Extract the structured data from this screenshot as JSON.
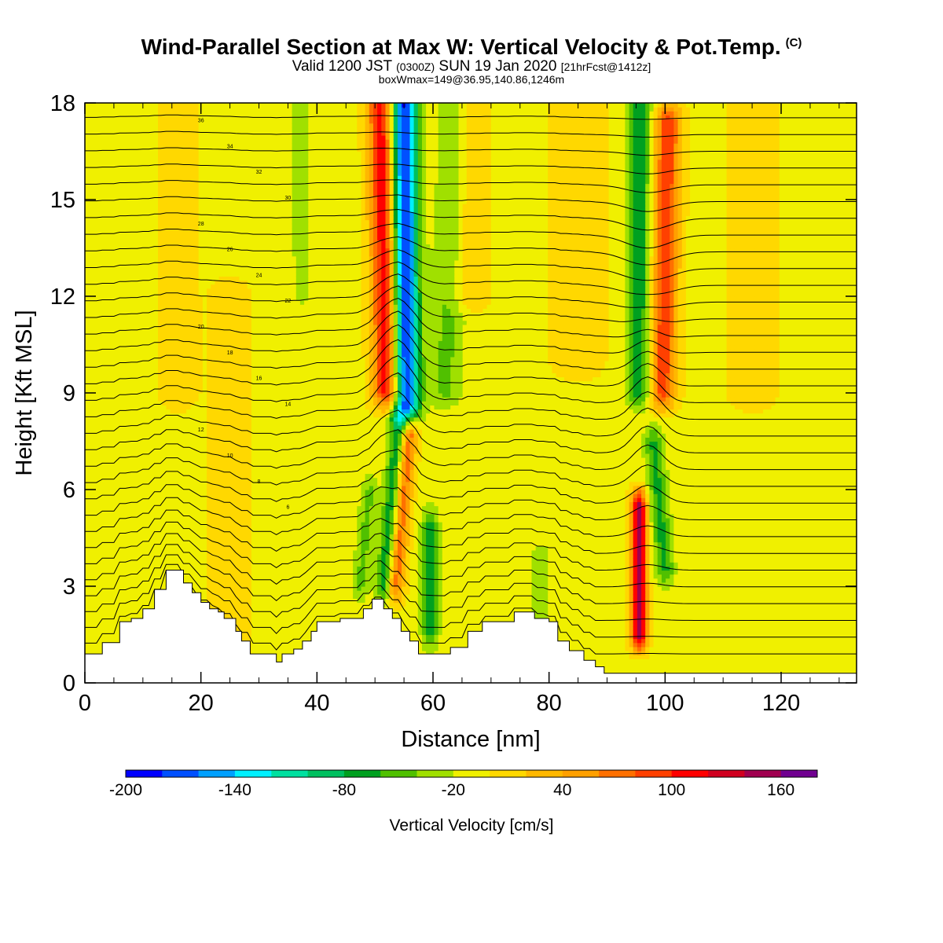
{
  "title": {
    "main": "Wind-Parallel Section at Max W: Vertical Velocity & Pot.Temp.",
    "copyright": "(C)",
    "valid_prefix": "Valid 1200 JST",
    "valid_utc": "(0300Z)",
    "valid_date": "SUN 19 Jan 2020",
    "fcst": "[21hrFcst@1412z]",
    "boxmax": "boxWmax=149@36.95,140.86,1246m"
  },
  "chart_data": {
    "type": "heatmap",
    "xlabel": "Distance [nm]",
    "ylabel": "Height [Kft MSL]",
    "xlim": [
      0,
      133
    ],
    "ylim": [
      0,
      18
    ],
    "xticks": [
      0,
      20,
      40,
      60,
      80,
      100,
      120
    ],
    "yticks": [
      0,
      3,
      6,
      9,
      12,
      15,
      18
    ],
    "colorbar": {
      "label": "Vertical Velocity [cm/s]",
      "range": [
        -200,
        180
      ],
      "tick_labels": [
        -200,
        -140,
        -80,
        -20,
        40,
        100,
        160
      ],
      "colors": [
        "#0000ff",
        "#0050ff",
        "#00a0ff",
        "#00f0ff",
        "#00e0a0",
        "#00c060",
        "#00a020",
        "#50c000",
        "#a0e000",
        "#f0f000",
        "#ffd800",
        "#ffb800",
        "#ffa000",
        "#ff7000",
        "#ff4000",
        "#ff0000",
        "#d00020",
        "#a00050",
        "#700090"
      ]
    },
    "background_value": -5,
    "velocity_features": [
      {
        "x": 52,
        "x_top": 51,
        "z0": 9,
        "z1": 18,
        "width": 2.2,
        "w": 120
      },
      {
        "x": 55.5,
        "x_top": 55,
        "z0": 8.5,
        "z1": 18,
        "width": 2.2,
        "w": -180
      },
      {
        "x": 51.5,
        "x_top": 54,
        "z0": 3,
        "z1": 8,
        "width": 1.5,
        "w": -70
      },
      {
        "x": 53.5,
        "x_top": 56,
        "z0": 3,
        "z1": 8,
        "width": 1.4,
        "w": 80
      },
      {
        "x": 62,
        "x_top": 64,
        "z0": 9,
        "z1": 18,
        "width": 3,
        "w": -40
      },
      {
        "x": 59.5,
        "x_top": 59.5,
        "z0": 1.5,
        "z1": 5,
        "width": 1.5,
        "w": -60
      },
      {
        "x": 47.5,
        "x_top": 49,
        "z0": 3,
        "z1": 6,
        "width": 1.5,
        "w": -40
      },
      {
        "x": 95.5,
        "x_top": 95.5,
        "z0": 9,
        "z1": 18,
        "width": 2.2,
        "w": -70
      },
      {
        "x": 99.5,
        "x_top": 100.5,
        "z0": 9,
        "z1": 17.5,
        "width": 2.2,
        "w": 100
      },
      {
        "x": 95.5,
        "x_top": 95.5,
        "z0": 1.5,
        "z1": 5.5,
        "width": 1.3,
        "w": 160
      },
      {
        "x": 100,
        "x_top": 98,
        "z0": 3.5,
        "z1": 7.5,
        "width": 1.7,
        "w": -60
      },
      {
        "x": 37.5,
        "x_top": 37,
        "z0": 12,
        "z1": 18,
        "width": 2.5,
        "w": -20
      },
      {
        "x": 78.5,
        "x_top": 78.5,
        "z0": 2,
        "z1": 4,
        "width": 2,
        "w": -25
      },
      {
        "x": 85,
        "x_top": 85,
        "z0": 10,
        "z1": 18,
        "width": 4,
        "w": 25
      },
      {
        "x": 66,
        "x_top": 66,
        "z0": 12,
        "z1": 18,
        "width": 3,
        "w": 30
      },
      {
        "x": 16,
        "x_top": 16,
        "z0": 9,
        "z1": 18,
        "width": 3,
        "w": 20
      },
      {
        "x": 25,
        "x_top": 25,
        "z0": 1,
        "z1": 12,
        "width": 3,
        "w": 25
      },
      {
        "x": 115,
        "x_top": 115,
        "z0": 9,
        "z1": 18,
        "width": 4,
        "w": 20
      }
    ],
    "terrain_profile_kft": [
      [
        0,
        0.9
      ],
      [
        3,
        0.9
      ],
      [
        3,
        1.25
      ],
      [
        6,
        1.25
      ],
      [
        6,
        1.9
      ],
      [
        8,
        1.9
      ],
      [
        8,
        2.0
      ],
      [
        10,
        2.0
      ],
      [
        10,
        2.3
      ],
      [
        12,
        2.3
      ],
      [
        12,
        2.9
      ],
      [
        14,
        2.9
      ],
      [
        14,
        3.5
      ],
      [
        17,
        3.5
      ],
      [
        17,
        3.1
      ],
      [
        18.5,
        3.1
      ],
      [
        18.5,
        2.8
      ],
      [
        20,
        2.8
      ],
      [
        20,
        2.5
      ],
      [
        21.5,
        2.5
      ],
      [
        21.5,
        2.3
      ],
      [
        23,
        2.3
      ],
      [
        23,
        2.2
      ],
      [
        24,
        2.2
      ],
      [
        24,
        2.0
      ],
      [
        26,
        2.0
      ],
      [
        26,
        1.6
      ],
      [
        27,
        1.6
      ],
      [
        27,
        1.3
      ],
      [
        28.5,
        1.3
      ],
      [
        28.5,
        0.9
      ],
      [
        33,
        0.9
      ],
      [
        33,
        0.65
      ],
      [
        34,
        0.65
      ],
      [
        34,
        0.9
      ],
      [
        36,
        0.9
      ],
      [
        36,
        1.05
      ],
      [
        37.5,
        1.05
      ],
      [
        37.5,
        1.3
      ],
      [
        39,
        1.3
      ],
      [
        39,
        1.6
      ],
      [
        40,
        1.6
      ],
      [
        40,
        1.9
      ],
      [
        44,
        1.9
      ],
      [
        44,
        2.0
      ],
      [
        48,
        2.0
      ],
      [
        48,
        2.3
      ],
      [
        49.5,
        2.3
      ],
      [
        49.5,
        2.6
      ],
      [
        51.5,
        2.6
      ],
      [
        51.5,
        2.3
      ],
      [
        53,
        2.3
      ],
      [
        53,
        2.0
      ],
      [
        54.5,
        2.0
      ],
      [
        54.5,
        1.6
      ],
      [
        56,
        1.6
      ],
      [
        56,
        1.3
      ],
      [
        57.5,
        1.3
      ],
      [
        57.5,
        0.9
      ],
      [
        63,
        0.9
      ],
      [
        63,
        1.1
      ],
      [
        66,
        1.1
      ],
      [
        66,
        1.6
      ],
      [
        68.5,
        1.6
      ],
      [
        68.5,
        1.9
      ],
      [
        74,
        1.9
      ],
      [
        74,
        2.2
      ],
      [
        77.5,
        2.2
      ],
      [
        77.5,
        2.0
      ],
      [
        80,
        2.0
      ],
      [
        80,
        1.9
      ],
      [
        81.5,
        1.9
      ],
      [
        81.5,
        1.3
      ],
      [
        83.5,
        1.3
      ],
      [
        83.5,
        1.0
      ],
      [
        86,
        1.0
      ],
      [
        86,
        0.7
      ],
      [
        88,
        0.7
      ],
      [
        88,
        0.5
      ],
      [
        89.5,
        0.5
      ],
      [
        89.5,
        0.3
      ],
      [
        133,
        0.3
      ]
    ],
    "contour_labels": [
      "36",
      "34",
      "32",
      "30",
      "28",
      "26",
      "24",
      "22",
      "20",
      "18",
      "16",
      "14",
      "12",
      "10",
      "8",
      "6"
    ]
  }
}
